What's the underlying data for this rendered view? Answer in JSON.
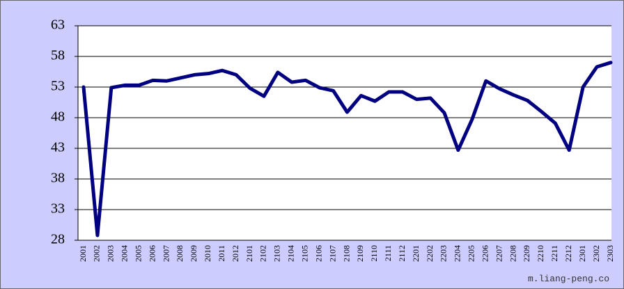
{
  "chart_data": {
    "type": "line",
    "categories": [
      "2001",
      "2002",
      "2003",
      "2004",
      "2005",
      "2006",
      "2007",
      "2008",
      "2009",
      "2010",
      "2011",
      "2012",
      "2101",
      "2102",
      "2103",
      "2104",
      "2105",
      "2106",
      "2107",
      "2108",
      "2109",
      "2110",
      "2111",
      "2112",
      "2201",
      "2202",
      "2203",
      "2204",
      "2205",
      "2206",
      "2207",
      "2208",
      "2209",
      "2210",
      "2211",
      "2212",
      "2301",
      "2302",
      "2303"
    ],
    "values": [
      53.0,
      28.8,
      52.9,
      53.3,
      53.3,
      54.1,
      54.0,
      54.5,
      55.0,
      55.2,
      55.7,
      55.0,
      52.8,
      51.5,
      55.4,
      53.8,
      54.1,
      52.9,
      52.4,
      48.9,
      51.6,
      50.7,
      52.2,
      52.2,
      51.0,
      51.2,
      48.8,
      42.7,
      47.7,
      54.0,
      52.7,
      51.7,
      50.8,
      49.0,
      47.1,
      42.7,
      53.0,
      56.3,
      57.0
    ],
    "color": "#000080",
    "ylim": [
      28,
      63
    ],
    "yticks": [
      28,
      33,
      38,
      43,
      48,
      53,
      58,
      63
    ],
    "grid": true,
    "watermark": "m.liang-peng.co"
  }
}
